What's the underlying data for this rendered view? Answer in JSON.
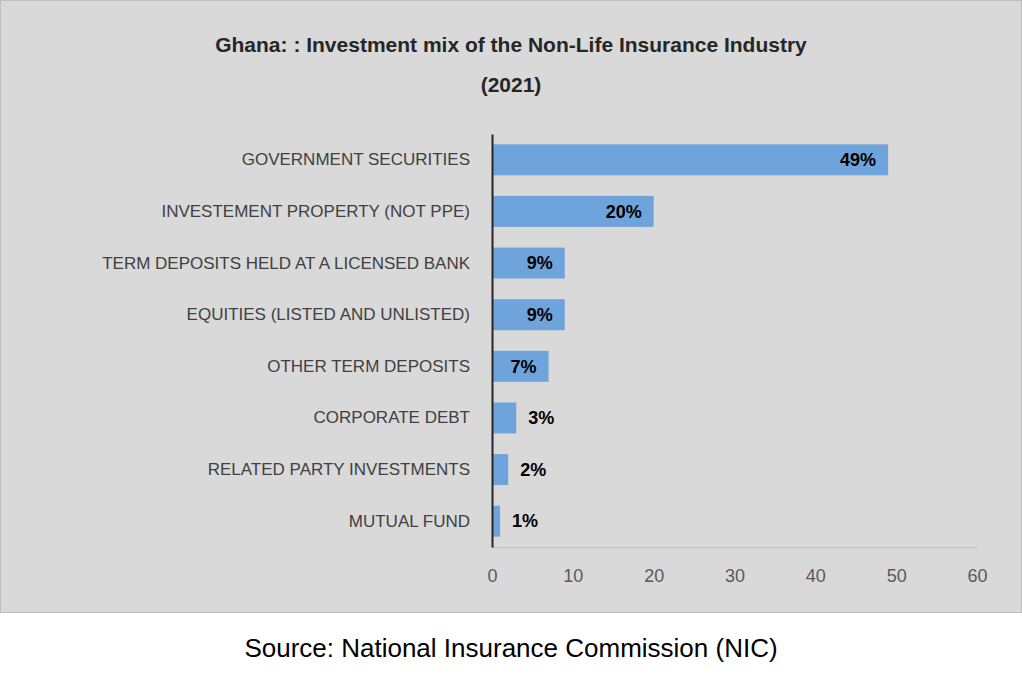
{
  "chart_data": {
    "type": "bar",
    "orientation": "horizontal",
    "title": "Ghana: : Investment mix of the Non-Life Insurance Industry",
    "subtitle": "(2021)",
    "source": "Source: National Insurance Commission (NIC)",
    "categories": [
      "GOVERNMENT SECURITIES",
      "INVESTEMENT PROPERTY (NOT PPE)",
      "TERM DEPOSITS HELD AT A LICENSED BANK",
      "EQUITIES (LISTED AND UNLISTED)",
      "OTHER TERM DEPOSITS",
      "CORPORATE DEBT",
      "RELATED PARTY INVESTMENTS",
      "MUTUAL FUND"
    ],
    "values": [
      49,
      20,
      9,
      9,
      7,
      3,
      2,
      1
    ],
    "value_labels": [
      "49%",
      "20%",
      "9%",
      "9%",
      "7%",
      "3%",
      "2%",
      "1%"
    ],
    "data_labels": true,
    "color": "#6fa3dc",
    "xlim": [
      0,
      60
    ],
    "xticks": [
      0,
      10,
      20,
      30,
      40,
      50,
      60
    ],
    "grid": false
  }
}
